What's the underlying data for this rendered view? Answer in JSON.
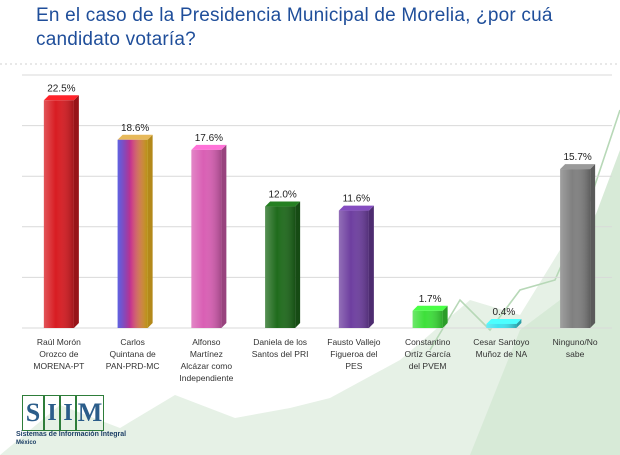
{
  "title": "En el caso de la Presidencia Municipal de Morelia, ¿por cuá\ncandidato votaría?",
  "logo": {
    "letters": [
      "S",
      "I",
      "I",
      "M"
    ],
    "subtitle": "Sistemas de Información Integral",
    "subtitle2": "México"
  },
  "chart_data": {
    "type": "bar",
    "title": "En el caso de la Presidencia Municipal de Morelia, ¿por cuá candidato votaría?",
    "categories": [
      [
        "Raúl Morón",
        "Orozco de",
        "MORENA-PT"
      ],
      [
        "Carlos",
        "Quintana de",
        "PAN-PRD-MC"
      ],
      [
        "Alfonso",
        "Martínez",
        "Alcázar como",
        "Independiente"
      ],
      [
        "Daniela de los",
        "Santos del PRI"
      ],
      [
        "Fausto Vallejo",
        "Figueroa del",
        "PES"
      ],
      [
        "Constantino",
        "Ortíz García",
        "del PVEM"
      ],
      [
        "Cesar Santoyo",
        "Muñoz de NA"
      ],
      [
        "Ninguno/No",
        "sabe"
      ]
    ],
    "values": [
      22.5,
      18.6,
      17.6,
      12.0,
      11.6,
      1.7,
      0.4,
      15.7
    ],
    "value_labels": [
      "22.5%",
      "18.6%",
      "17.6%",
      "12.0%",
      "11.6%",
      "1.7%",
      "0.4%",
      "15.7%"
    ],
    "colors": [
      "#d81c22",
      "gradient-blue-yellow",
      "#d95fb4",
      "#1f6b1c",
      "#6e3fa0",
      "#3de03a",
      "#3fe3ef",
      "#808080"
    ],
    "ylim": [
      0,
      25
    ],
    "grid": true,
    "legend": "none"
  }
}
